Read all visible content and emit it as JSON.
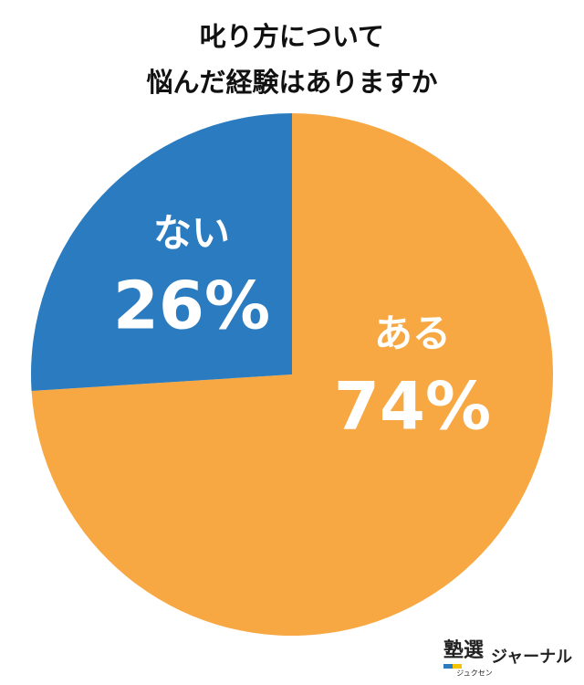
{
  "chart_data": {
    "type": "pie",
    "title": [
      "叱り方について",
      "悩んだ経験はありますか"
    ],
    "categories": [
      "ある",
      "ない"
    ],
    "values": [
      74,
      26
    ],
    "value_labels": [
      "74%",
      "26%"
    ],
    "colors": [
      "#f7a843",
      "#2a7bbf"
    ]
  },
  "logo": {
    "name": "塾選",
    "reading": "ジュクセン",
    "suffix": "ジャーナル"
  }
}
